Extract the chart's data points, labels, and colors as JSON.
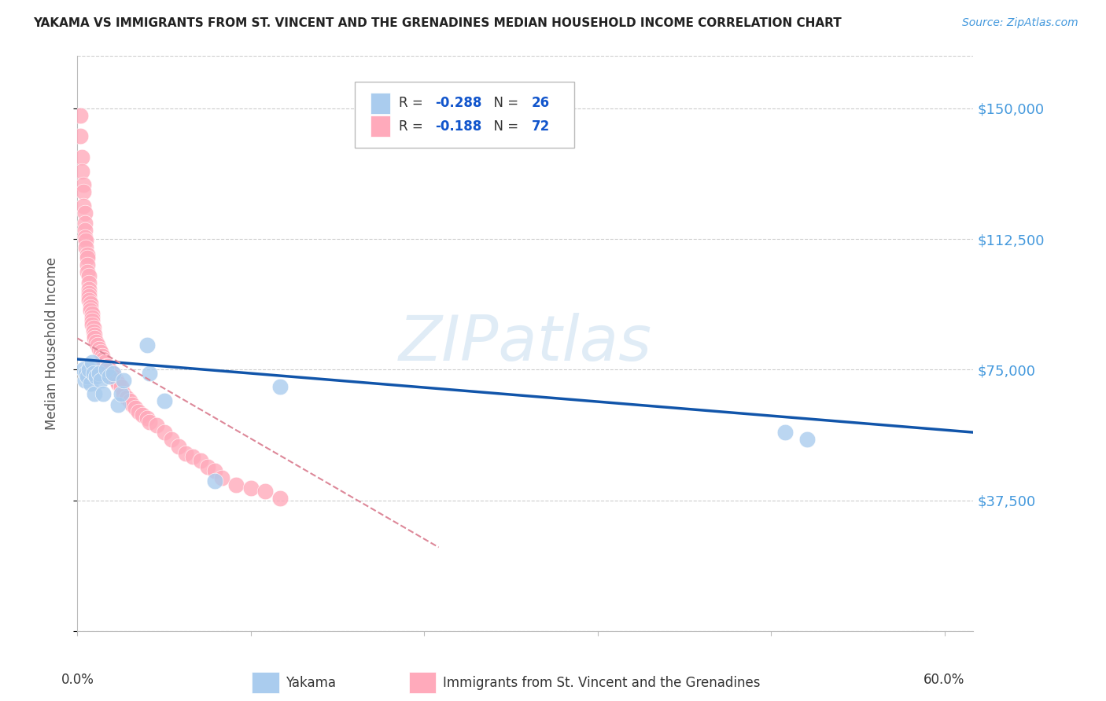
{
  "title": "YAKAMA VS IMMIGRANTS FROM ST. VINCENT AND THE GRENADINES MEDIAN HOUSEHOLD INCOME CORRELATION CHART",
  "source": "Source: ZipAtlas.com",
  "ylabel": "Median Household Income",
  "yticks": [
    0,
    37500,
    75000,
    112500,
    150000
  ],
  "ytick_labels": [
    "",
    "$37,500",
    "$75,000",
    "$112,500",
    "$150,000"
  ],
  "xlim": [
    0.0,
    0.62
  ],
  "ylim": [
    0,
    165000
  ],
  "yakama_x": [
    0.004,
    0.005,
    0.006,
    0.007,
    0.008,
    0.009,
    0.01,
    0.011,
    0.012,
    0.013,
    0.015,
    0.016,
    0.018,
    0.02,
    0.022,
    0.025,
    0.028,
    0.03,
    0.032,
    0.048,
    0.05,
    0.06,
    0.095,
    0.14,
    0.49,
    0.505
  ],
  "yakama_y": [
    75000,
    72000,
    74000,
    73000,
    75000,
    71000,
    77000,
    74000,
    68000,
    73000,
    74000,
    72000,
    68000,
    75000,
    73000,
    74000,
    65000,
    68000,
    72000,
    82000,
    74000,
    66000,
    43000,
    70000,
    57000,
    55000
  ],
  "svg_x": [
    0.002,
    0.002,
    0.003,
    0.003,
    0.004,
    0.004,
    0.004,
    0.005,
    0.005,
    0.005,
    0.005,
    0.006,
    0.006,
    0.007,
    0.007,
    0.007,
    0.007,
    0.008,
    0.008,
    0.008,
    0.008,
    0.008,
    0.008,
    0.009,
    0.009,
    0.009,
    0.01,
    0.01,
    0.01,
    0.01,
    0.011,
    0.011,
    0.012,
    0.012,
    0.013,
    0.014,
    0.015,
    0.016,
    0.017,
    0.018,
    0.019,
    0.02,
    0.021,
    0.022,
    0.024,
    0.025,
    0.027,
    0.028,
    0.03,
    0.032,
    0.034,
    0.036,
    0.038,
    0.04,
    0.042,
    0.045,
    0.048,
    0.05,
    0.055,
    0.06,
    0.065,
    0.07,
    0.075,
    0.08,
    0.085,
    0.09,
    0.095,
    0.1,
    0.11,
    0.12,
    0.13,
    0.14
  ],
  "svg_y": [
    148000,
    142000,
    136000,
    132000,
    128000,
    126000,
    122000,
    120000,
    117000,
    115000,
    113000,
    112000,
    110000,
    108000,
    107000,
    105000,
    103000,
    102000,
    100000,
    98000,
    97000,
    96000,
    95000,
    94000,
    93000,
    92000,
    91000,
    90000,
    89000,
    88000,
    87000,
    86000,
    85000,
    84000,
    83000,
    82000,
    81000,
    80000,
    79000,
    78000,
    77000,
    76000,
    76000,
    75000,
    74000,
    73000,
    72000,
    71000,
    70000,
    68000,
    67000,
    66000,
    65000,
    64000,
    63000,
    62000,
    61000,
    60000,
    59000,
    57000,
    55000,
    53000,
    51000,
    50000,
    49000,
    47000,
    46000,
    44000,
    42000,
    41000,
    40000,
    38000
  ],
  "yakama_trendline_x": [
    0.0,
    0.62
  ],
  "yakama_trendline_y": [
    78000,
    57000
  ],
  "svg_trendline_x": [
    0.0,
    0.25
  ],
  "svg_trendline_y": [
    84000,
    24000
  ],
  "bg_color": "#ffffff",
  "grid_color": "#cccccc",
  "yakama_dot_color": "#aaccee",
  "svg_dot_color": "#ffaabb",
  "yakama_line_color": "#1155aa",
  "svg_line_color": "#dd8899",
  "watermark_color": "#c8ddf0",
  "xtick_positions": [
    0.0,
    0.12,
    0.24,
    0.36,
    0.48,
    0.6
  ],
  "legend_r1": "-0.288",
  "legend_n1": "26",
  "legend_r2": "-0.188",
  "legend_n2": "72",
  "legend_val_color": "#1155cc",
  "legend_label_color": "#333333",
  "ytick_color": "#4499dd",
  "source_color": "#4499dd"
}
